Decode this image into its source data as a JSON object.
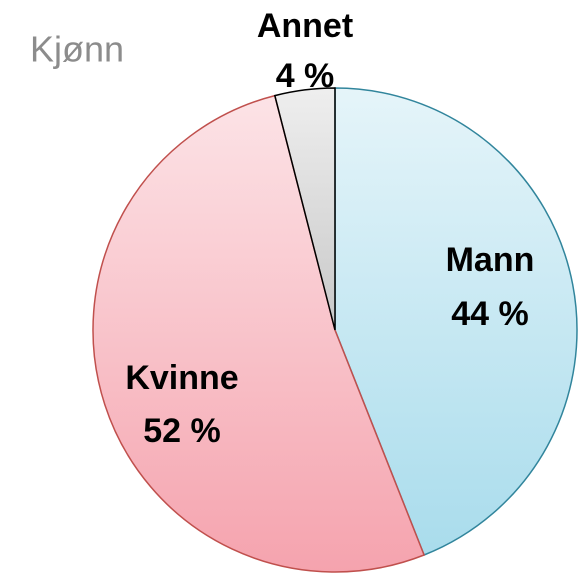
{
  "chart_data": {
    "type": "pie",
    "title": "Kjønn",
    "categories": [
      "Mann",
      "Kvinne",
      "Annet"
    ],
    "values": [
      44,
      52,
      4
    ],
    "value_labels": [
      "44 %",
      "52 %",
      "4 %"
    ],
    "colors": [
      "#a9dcec",
      "#f5a3ae",
      "#c8c8c8"
    ]
  }
}
